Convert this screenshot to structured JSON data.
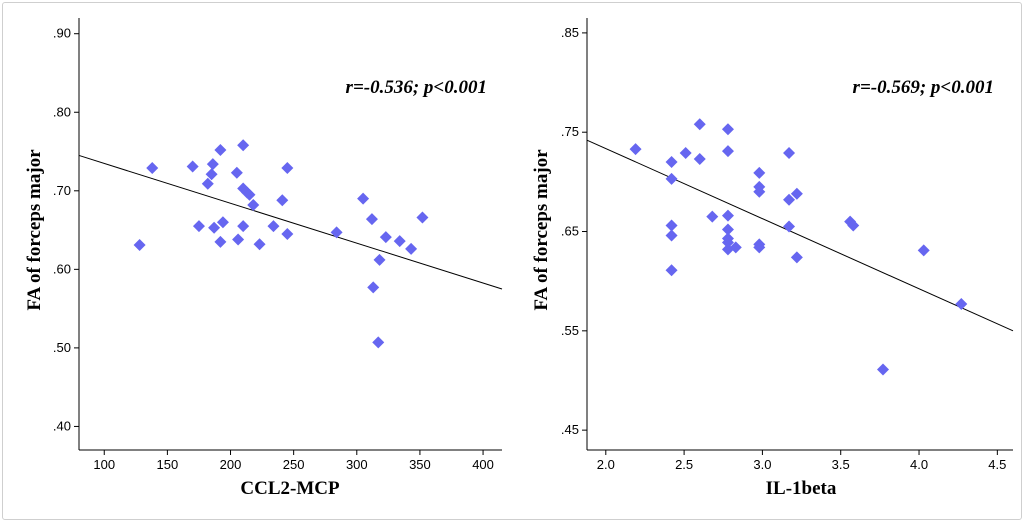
{
  "colors": {
    "marker": "#6666F0",
    "axis": "#000000",
    "fit_line": "#000000",
    "frame": "#cfcfcf"
  },
  "chart_data": [
    {
      "type": "scatter",
      "xlabel": "CCL2-MCP",
      "ylabel": "FA of forceps major",
      "annotation": "r=-0.536; p<0.001",
      "xlim": [
        80,
        415
      ],
      "ylim": [
        0.37,
        0.92
      ],
      "x_ticks": [
        100,
        150,
        200,
        250,
        300,
        350,
        400
      ],
      "x_tick_labels": [
        "100",
        "150",
        "200",
        "250",
        "300",
        "350",
        "400"
      ],
      "y_ticks": [
        0.4,
        0.5,
        0.6,
        0.7,
        0.8,
        0.9
      ],
      "y_tick_labels": [
        ".40",
        ".50",
        ".60",
        ".70",
        ".80",
        ".90"
      ],
      "fit_line": {
        "x": [
          80,
          415
        ],
        "y": [
          0.745,
          0.575
        ]
      },
      "points": [
        [
          128,
          0.631
        ],
        [
          138,
          0.729
        ],
        [
          170,
          0.731
        ],
        [
          175,
          0.655
        ],
        [
          182,
          0.709
        ],
        [
          185,
          0.721
        ],
        [
          186,
          0.734
        ],
        [
          187,
          0.653
        ],
        [
          192,
          0.752
        ],
        [
          192,
          0.635
        ],
        [
          194,
          0.66
        ],
        [
          205,
          0.723
        ],
        [
          206,
          0.638
        ],
        [
          210,
          0.758
        ],
        [
          210,
          0.703
        ],
        [
          210,
          0.655
        ],
        [
          213,
          0.698
        ],
        [
          215,
          0.695
        ],
        [
          218,
          0.682
        ],
        [
          223,
          0.632
        ],
        [
          234,
          0.655
        ],
        [
          241,
          0.688
        ],
        [
          245,
          0.729
        ],
        [
          245,
          0.645
        ],
        [
          284,
          0.647
        ],
        [
          305,
          0.69
        ],
        [
          312,
          0.664
        ],
        [
          313,
          0.577
        ],
        [
          317,
          0.507
        ],
        [
          318,
          0.612
        ],
        [
          323,
          0.641
        ],
        [
          334,
          0.636
        ],
        [
          343,
          0.626
        ],
        [
          352,
          0.666
        ]
      ]
    },
    {
      "type": "scatter",
      "xlabel": "IL-1beta",
      "ylabel": "FA of forceps major",
      "annotation": "r=-0.569; p<0.001",
      "xlim": [
        1.88,
        4.6
      ],
      "ylim": [
        0.43,
        0.865
      ],
      "x_ticks": [
        2.0,
        2.5,
        3.0,
        3.5,
        4.0,
        4.5
      ],
      "x_tick_labels": [
        "2.0",
        "2.5",
        "3.0",
        "3.5",
        "4.0",
        "4.5"
      ],
      "y_ticks": [
        0.45,
        0.55,
        0.65,
        0.75,
        0.85
      ],
      "y_tick_labels": [
        ".45",
        ".55",
        ".65",
        ".75",
        ".85"
      ],
      "fit_line": {
        "x": [
          1.88,
          4.6
        ],
        "y": [
          0.742,
          0.55
        ]
      },
      "points": [
        [
          2.19,
          0.733
        ],
        [
          2.42,
          0.72
        ],
        [
          2.42,
          0.703
        ],
        [
          2.42,
          0.656
        ],
        [
          2.42,
          0.646
        ],
        [
          2.42,
          0.611
        ],
        [
          2.51,
          0.729
        ],
        [
          2.6,
          0.758
        ],
        [
          2.6,
          0.723
        ],
        [
          2.68,
          0.665
        ],
        [
          2.78,
          0.753
        ],
        [
          2.78,
          0.731
        ],
        [
          2.78,
          0.666
        ],
        [
          2.78,
          0.652
        ],
        [
          2.78,
          0.643
        ],
        [
          2.78,
          0.639
        ],
        [
          2.78,
          0.632
        ],
        [
          2.83,
          0.634
        ],
        [
          2.98,
          0.709
        ],
        [
          2.98,
          0.695
        ],
        [
          2.98,
          0.69
        ],
        [
          2.98,
          0.637
        ],
        [
          2.98,
          0.634
        ],
        [
          3.17,
          0.729
        ],
        [
          3.17,
          0.682
        ],
        [
          3.17,
          0.655
        ],
        [
          3.22,
          0.688
        ],
        [
          3.22,
          0.624
        ],
        [
          3.56,
          0.66
        ],
        [
          3.58,
          0.656
        ],
        [
          3.77,
          0.511
        ],
        [
          4.03,
          0.631
        ],
        [
          4.27,
          0.577
        ]
      ]
    }
  ]
}
